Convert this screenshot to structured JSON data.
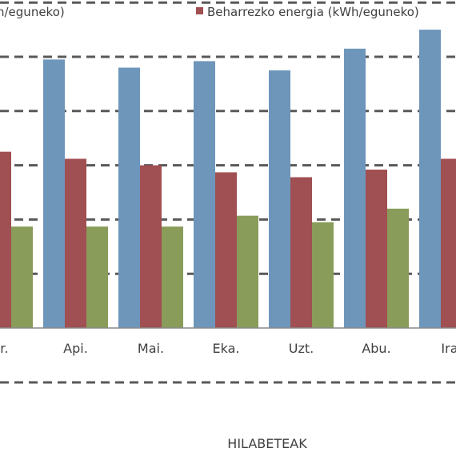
{
  "chart_data": {
    "type": "bar",
    "title": "",
    "xlabel": "HILABETEAK",
    "ylabel": "",
    "categories": [
      "ar.",
      "Api.",
      "Mai.",
      "Eka.",
      "Uzt.",
      "Abu.",
      "Ira."
    ],
    "ylim": [
      0,
      6
    ],
    "grid": true,
    "legend_position": "top",
    "series": [
      {
        "name": "",
        "color": "#6e96bb",
        "values": [
          0,
          4.95,
          4.8,
          4.92,
          4.75,
          5.15,
          5.5
        ]
      },
      {
        "name": "Beharrezko energia (kWh/eguneko)",
        "color": "#a04f52",
        "values": [
          3.25,
          3.12,
          3.0,
          2.87,
          2.78,
          2.92,
          3.12
        ]
      },
      {
        "name": "",
        "color": "#8a9c5a",
        "values": [
          1.87,
          1.87,
          1.87,
          2.07,
          1.95,
          2.2,
          0
        ]
      }
    ],
    "legend_partial_text": "h/eguneko)"
  }
}
